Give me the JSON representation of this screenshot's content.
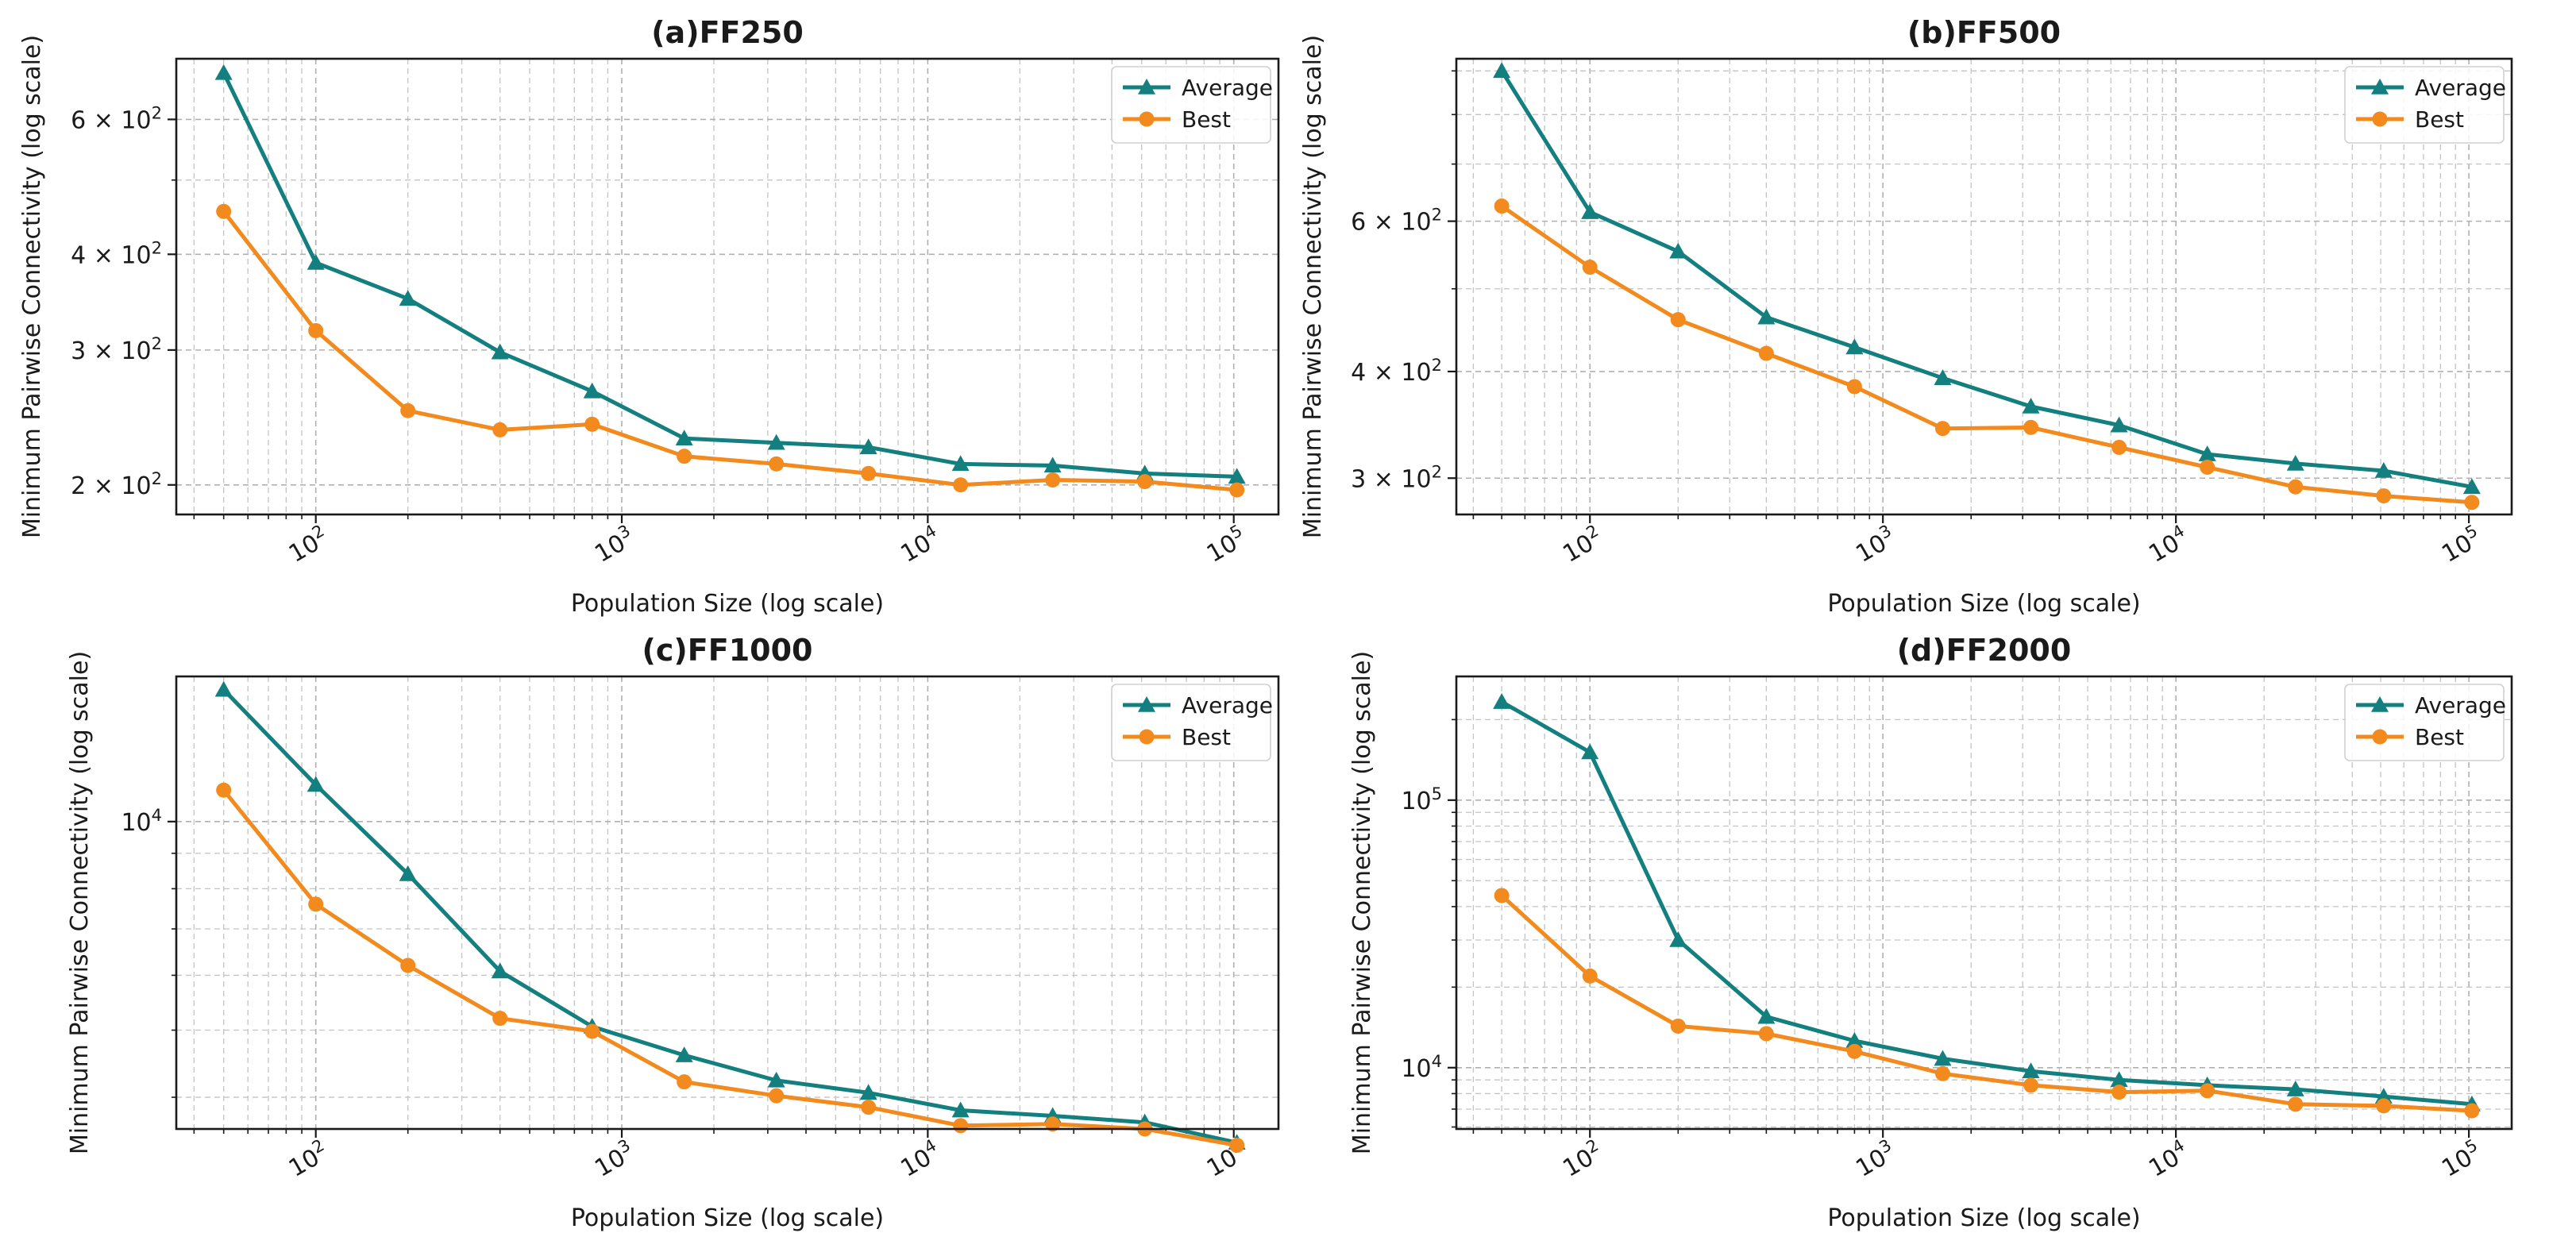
{
  "colors": {
    "average": "#137f7f",
    "best": "#f28a1e"
  },
  "chart_data": [
    {
      "type": "line",
      "title": "(a)FF250",
      "xlabel": "Population Size (log scale)",
      "ylabel": "Minimum Pairwise Connectivity (log scale)",
      "xscale": "log",
      "yscale": "log",
      "xlim": [
        35,
        140000
      ],
      "ylim": [
        183,
        720
      ],
      "xticks": [
        {
          "value": 100,
          "label": "10",
          "exp": "2"
        },
        {
          "value": 1000,
          "label": "10",
          "exp": "3"
        },
        {
          "value": 10000,
          "label": "10",
          "exp": "4"
        },
        {
          "value": 100000,
          "label": "10",
          "exp": "5"
        }
      ],
      "yticks": [
        {
          "value": 200,
          "label": "2 × 10",
          "exp": "2"
        },
        {
          "value": 300,
          "label": "3 × 10",
          "exp": "2"
        },
        {
          "value": 400,
          "label": "4 × 10",
          "exp": "2"
        },
        {
          "value": 600,
          "label": "6 × 10",
          "exp": "2"
        }
      ],
      "yminor": [
        500
      ],
      "legend": {
        "position": "top-right",
        "entries": [
          "Average",
          "Best"
        ]
      },
      "grid": true,
      "x": [
        50,
        100,
        200,
        400,
        800,
        1600,
        3200,
        6400,
        12800,
        25600,
        51200,
        102400
      ],
      "series": [
        {
          "name": "Average",
          "marker": "triangle",
          "values": [
            690,
            390,
            350,
            298,
            265,
            230,
            227,
            224,
            213,
            212,
            207,
            205
          ]
        },
        {
          "name": "Best",
          "marker": "circle",
          "values": [
            455,
            318,
            250,
            236,
            240,
            218,
            213,
            207,
            200,
            203,
            202,
            197
          ]
        }
      ]
    },
    {
      "type": "line",
      "title": "(b)FF500",
      "xlabel": "Population Size (log scale)",
      "ylabel": "Minimum Pairwise Connectivity (log scale)",
      "xscale": "log",
      "yscale": "log",
      "xlim": [
        35,
        140000
      ],
      "ylim": [
        272,
        930
      ],
      "xticks": [
        {
          "value": 100,
          "label": "10",
          "exp": "2"
        },
        {
          "value": 1000,
          "label": "10",
          "exp": "3"
        },
        {
          "value": 10000,
          "label": "10",
          "exp": "4"
        },
        {
          "value": 100000,
          "label": "10",
          "exp": "5"
        }
      ],
      "yticks": [
        {
          "value": 300,
          "label": "3 × 10",
          "exp": "2"
        },
        {
          "value": 400,
          "label": "4 × 10",
          "exp": "2"
        },
        {
          "value": 600,
          "label": "6 × 10",
          "exp": "2"
        }
      ],
      "yminor": [
        500,
        700,
        800,
        900
      ],
      "legend": {
        "position": "top-right",
        "entries": [
          "Average",
          "Best"
        ]
      },
      "grid": true,
      "x": [
        50,
        100,
        200,
        400,
        800,
        1600,
        3200,
        6400,
        12800,
        25600,
        51200,
        102400
      ],
      "series": [
        {
          "name": "Average",
          "marker": "triangle",
          "values": [
            900,
            615,
            553,
            463,
            427,
            393,
            364,
            346,
            320,
            312,
            306,
            293
          ]
        },
        {
          "name": "Best",
          "marker": "circle",
          "values": [
            625,
            530,
            460,
            420,
            384,
            343,
            344,
            326,
            309,
            293,
            286,
            281
          ]
        }
      ]
    },
    {
      "type": "line",
      "title": "(c)FF1000",
      "xlabel": "Population Size (log scale)",
      "ylabel": "Minimum Pairwise Connectivity (log scale)",
      "xscale": "log",
      "yscale": "log",
      "xlim": [
        35,
        140000
      ],
      "ylim": [
        3600,
        16200
      ],
      "xticks": [
        {
          "value": 100,
          "label": "10",
          "exp": "2"
        },
        {
          "value": 1000,
          "label": "10",
          "exp": "3"
        },
        {
          "value": 10000,
          "label": "10",
          "exp": "4"
        },
        {
          "value": 100000,
          "label": "10",
          "exp": "5"
        }
      ],
      "yticks": [
        {
          "value": 10000,
          "label": "10",
          "exp": "4"
        }
      ],
      "yminor": [
        4000,
        5000,
        6000,
        7000,
        8000,
        9000
      ],
      "legend": {
        "position": "top-right",
        "entries": [
          "Average",
          "Best"
        ]
      },
      "grid": true,
      "x": [
        50,
        100,
        200,
        400,
        800,
        1600,
        3200,
        6400,
        12800,
        25600,
        51200,
        102400
      ],
      "series": [
        {
          "name": "Average",
          "marker": "triangle",
          "values": [
            15500,
            11300,
            8400,
            6080,
            5060,
            4600,
            4230,
            4060,
            3830,
            3760,
            3680,
            3440
          ]
        },
        {
          "name": "Best",
          "marker": "circle",
          "values": [
            11100,
            7600,
            6200,
            5200,
            4980,
            4210,
            4020,
            3870,
            3640,
            3660,
            3600,
            3410
          ]
        }
      ]
    },
    {
      "type": "line",
      "title": "(d)FF2000",
      "xlabel": "Population Size (log scale)",
      "ylabel": "Minimum Pairwise Connectivity (log scale)",
      "xscale": "log",
      "yscale": "log",
      "xlim": [
        35,
        140000
      ],
      "ylim": [
        5900,
        290000
      ],
      "xticks": [
        {
          "value": 100,
          "label": "10",
          "exp": "2"
        },
        {
          "value": 1000,
          "label": "10",
          "exp": "3"
        },
        {
          "value": 10000,
          "label": "10",
          "exp": "4"
        },
        {
          "value": 100000,
          "label": "10",
          "exp": "5"
        }
      ],
      "yticks": [
        {
          "value": 10000,
          "label": "10",
          "exp": "4"
        },
        {
          "value": 100000,
          "label": "10",
          "exp": "5"
        }
      ],
      "yminor": [
        6000,
        7000,
        8000,
        9000,
        20000,
        30000,
        40000,
        50000,
        60000,
        70000,
        80000,
        90000,
        200000
      ],
      "legend": {
        "position": "top-right",
        "entries": [
          "Average",
          "Best"
        ]
      },
      "grid": true,
      "x": [
        50,
        100,
        200,
        400,
        800,
        1600,
        3200,
        6400,
        12800,
        25600,
        51200,
        102400
      ],
      "series": [
        {
          "name": "Average",
          "marker": "triangle",
          "values": [
            233000,
            151000,
            30000,
            15500,
            12600,
            10800,
            9700,
            9000,
            8600,
            8300,
            7800,
            7300
          ]
        },
        {
          "name": "Best",
          "marker": "circle",
          "values": [
            44000,
            22000,
            14300,
            13400,
            11500,
            9500,
            8600,
            8100,
            8200,
            7300,
            7200,
            6900
          ]
        }
      ]
    }
  ]
}
